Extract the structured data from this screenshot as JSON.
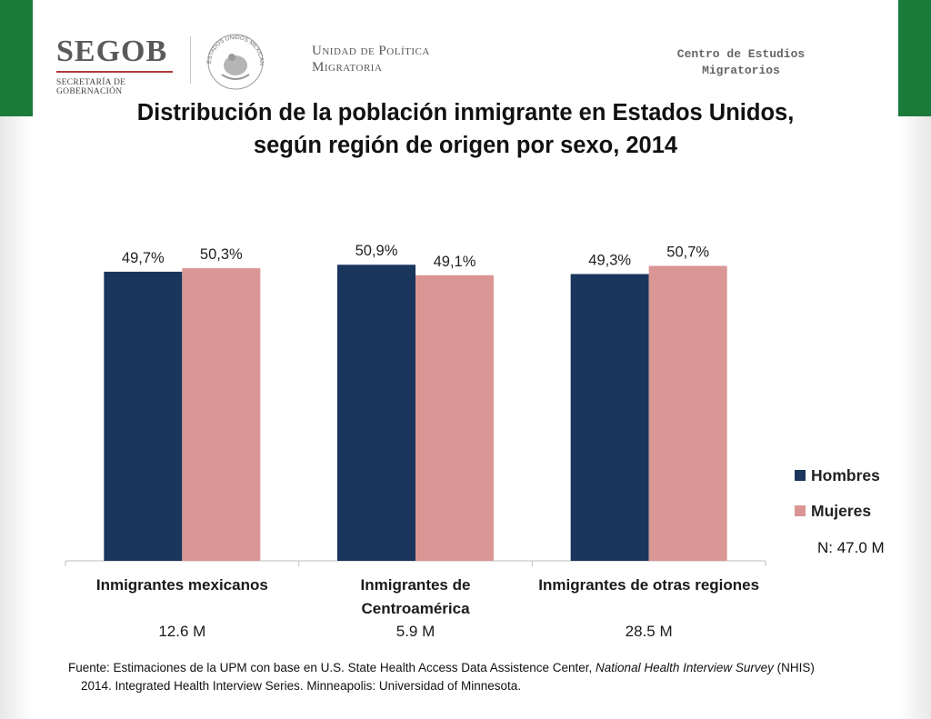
{
  "header": {
    "logo_text": "SEGOB",
    "logo_subtitle": "SECRETARÍA DE GOBERNACIÓN",
    "seal_text": "ESTADOS UNIDOS MEXICANOS",
    "unit_line1": "Unidad de Política",
    "unit_line2": "Migratoria",
    "centro_line1": "Centro de Estudios",
    "centro_line2": "Migratorios"
  },
  "colors": {
    "hombres": "#1b365d",
    "mujeres": "#d99694",
    "frame_green": "#1a7a3a"
  },
  "chart_data": {
    "type": "bar",
    "title_line1": "Distribución de la población inmigrante en Estados Unidos,",
    "title_line2": "según región de origen por sexo, 2014",
    "categories": [
      {
        "line1": "Inmigrantes mexicanos",
        "line2": ""
      },
      {
        "line1": "Inmigrantes de",
        "line2": "Centroamérica"
      },
      {
        "line1": "Inmigrantes de otras regiones",
        "line2": ""
      }
    ],
    "category_totals": [
      "12.6 M",
      "5.9 M",
      "28.5 M"
    ],
    "series": [
      {
        "name": "Hombres",
        "values": [
          49.7,
          50.9,
          49.3
        ],
        "labels": [
          "49,7%",
          "50,9%",
          "49,3%"
        ]
      },
      {
        "name": "Mujeres",
        "values": [
          50.3,
          49.1,
          50.7
        ],
        "labels": [
          "50,3%",
          "49,1%",
          "50,7%"
        ]
      }
    ],
    "ylim": [
      0,
      60
    ],
    "grid": false,
    "legend_position": "right",
    "total_note": "N: 47.0 M"
  },
  "source": {
    "prefix": "Fuente: Estimaciones de la UPM con base en U.S. State Health Access Data Assistence Center, ",
    "survey": "National Health Interview Survey",
    "suffix": " (NHIS)",
    "line2": "2014. Integrated Health Interview Series. Minneapolis: Universidad of Minnesota."
  }
}
